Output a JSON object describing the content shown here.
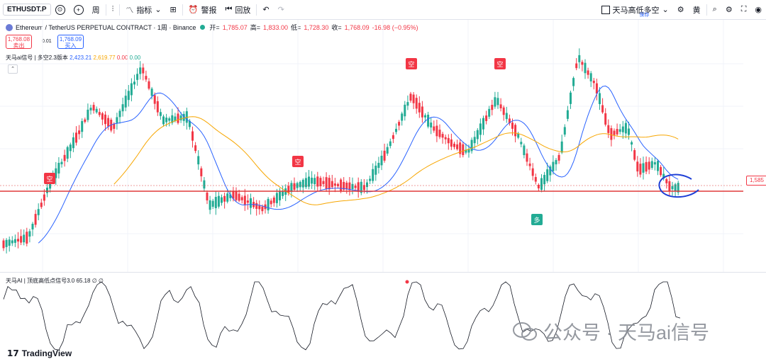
{
  "toolbar": {
    "symbol": "ETHUSDT.P",
    "interval": "周",
    "indicators_label": "指标",
    "alert_label": "警报",
    "replay_label": "回放",
    "layout_name": "天马高低多空",
    "save_label": "保存",
    "right_glyph": "黄"
  },
  "legend": {
    "instrument": "Ethereum / TetherUS PERPETUAL CONTRACT · 1周 · Binance",
    "open_label": "开=",
    "open": "1,785.07",
    "high_label": "高=",
    "high": "1,833.00",
    "low_label": "低=",
    "low": "1,728.30",
    "close_label": "收=",
    "close": "1,768.09",
    "change": "-16.98 (−0.95%)"
  },
  "trade": {
    "sell_price": "1,768.08",
    "sell_label": "卖出",
    "spread": "0.01",
    "buy_price": "1,768.09",
    "buy_label": "买入"
  },
  "indicator1": {
    "name": "天马ai信号 | 多空2.3版本",
    "v1": "2,423.21",
    "v2": "2,619.77",
    "v3": "0.00",
    "v4": "0.00"
  },
  "indicator2": {
    "name": "天马AI | 顶底高低点信号3.0",
    "value": "65.18",
    "glyphs": "∅ ∅"
  },
  "signals": {
    "short": "空",
    "long": "多"
  },
  "price_tag": "1,585",
  "branding": {
    "logo": "TradingView",
    "watermark": "公众号 · 天马ai信号"
  },
  "colors": {
    "up": "#22ab94",
    "down": "#f23645",
    "ma_fast": "#2962ff",
    "ma_slow": "#f7a600",
    "support": "#e03a3a",
    "annotation": "#1f3fd6"
  },
  "chart_data": {
    "type": "candlestick",
    "series": [
      {
        "name": "周K线",
        "values": [
          245,
          255,
          260,
          280,
          330,
          380,
          350,
          420,
          400,
          470,
          430,
          500,
          490,
          460,
          540,
          510,
          470,
          430,
          400,
          360,
          420,
          380,
          410,
          390,
          360,
          340,
          320,
          300,
          280,
          300,
          330,
          360,
          350,
          320,
          300,
          330,
          310,
          290,
          300,
          340,
          320,
          300,
          310,
          290,
          280,
          300,
          320,
          310,
          330,
          320,
          300,
          290,
          280,
          300,
          330,
          360,
          390,
          420,
          410,
          450,
          500,
          530,
          470,
          430,
          450,
          490,
          510,
          470,
          440,
          420,
          400,
          380,
          360,
          350,
          330,
          320,
          300,
          310,
          340,
          370,
          380,
          360,
          360,
          380,
          410,
          440,
          460,
          500,
          530,
          540,
          500,
          480,
          450,
          430,
          400,
          370,
          350,
          330,
          320,
          300,
          310,
          320,
          300,
          290,
          280
        ]
      },
      {
        "name": "快速均线",
        "values": []
      },
      {
        "name": "慢速均线",
        "values": []
      },
      {
        "name": "信号振荡器",
        "values": []
      }
    ]
  }
}
